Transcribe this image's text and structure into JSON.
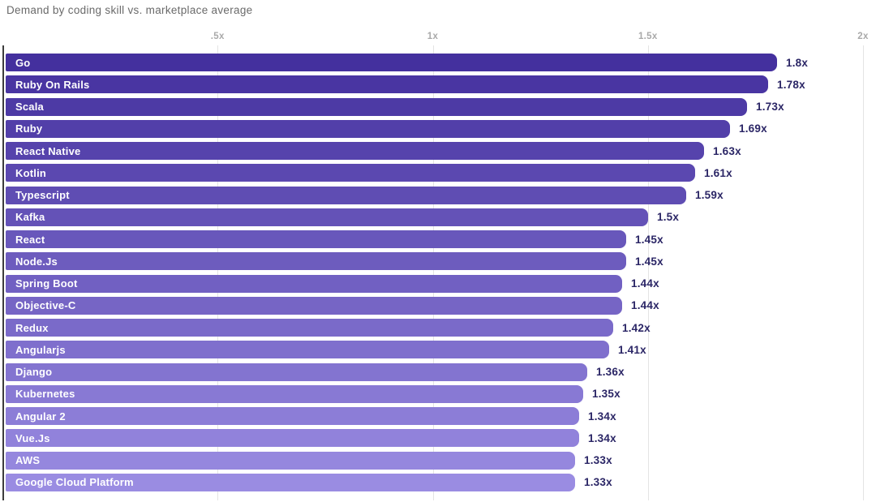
{
  "title": "Demand by coding skill vs. marketplace average",
  "chart_data": {
    "type": "bar",
    "orientation": "horizontal",
    "title": "Demand by coding skill vs. marketplace average",
    "categories": [
      "Go",
      "Ruby On Rails",
      "Scala",
      "Ruby",
      "React Native",
      "Kotlin",
      "Typescript",
      "Kafka",
      "React",
      "Node.Js",
      "Spring Boot",
      "Objective-C",
      "Redux",
      "Angularjs",
      "Django",
      "Kubernetes",
      "Angular 2",
      "Vue.Js",
      "AWS",
      "Google Cloud Platform"
    ],
    "values": [
      1.8,
      1.78,
      1.73,
      1.69,
      1.63,
      1.61,
      1.59,
      1.5,
      1.45,
      1.45,
      1.44,
      1.44,
      1.42,
      1.41,
      1.36,
      1.35,
      1.34,
      1.34,
      1.33,
      1.33
    ],
    "value_labels": [
      "1.8x",
      "1.78x",
      "1.73x",
      "1.69x",
      "1.63x",
      "1.61x",
      "1.59x",
      "1.5x",
      "1.45x",
      "1.45x",
      "1.44x",
      "1.44x",
      "1.42x",
      "1.41x",
      "1.36x",
      "1.35x",
      "1.34x",
      "1.34x",
      "1.33x",
      "1.33x"
    ],
    "xlabel": "",
    "ylabel": "",
    "xlim": [
      0,
      2
    ],
    "x_tick_labels": [
      ".5x",
      "1x",
      "1.5x",
      "2x"
    ],
    "x_tick_values": [
      0.5,
      1,
      1.5,
      2
    ],
    "grid": true,
    "legend": false
  },
  "colors": {
    "bar_gradient_top": "#44309E",
    "bar_gradient_bottom": "#9A8CE2",
    "bar_label_text": "#FFFFFF",
    "value_label_text": "#2B2666",
    "title_text": "#6A6A6A",
    "tick_label_text": "#A9A9A9",
    "gridline": "#E4E4E4",
    "axis_line": "#3D3D3D",
    "background": "#FFFFFF"
  }
}
